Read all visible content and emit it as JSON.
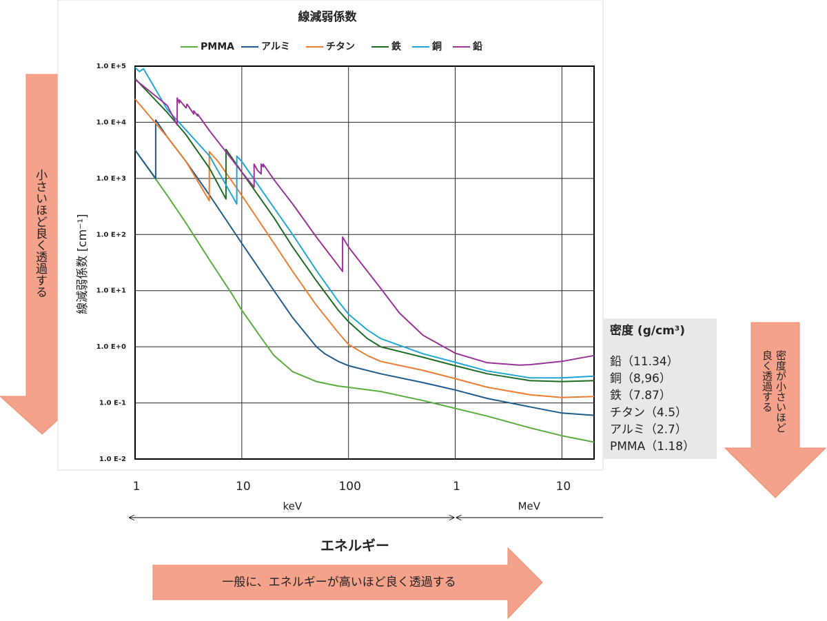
{
  "chart_data": {
    "type": "line",
    "title": "線減弱係数",
    "y_label": "線減弱係数 [cm⁻¹]",
    "x_label": "エネルギー",
    "xscale": "log",
    "yscale": "log",
    "grid": true,
    "legend": "top",
    "xlim": [
      1,
      20000
    ],
    "ylim": [
      0.01,
      100000
    ],
    "xticks": [
      1,
      10,
      100,
      {
        "value": 1000,
        "label": "1"
      },
      {
        "value": 10000,
        "label": "10"
      }
    ],
    "yticks": [
      {
        "value": 0.01,
        "label": "1.0 E-2"
      },
      {
        "value": 0.1,
        "label": "1.0 E-1"
      },
      {
        "value": 1,
        "label": "1.0 E+0"
      },
      {
        "value": 10,
        "label": "1.0 E+1"
      },
      {
        "value": 100,
        "label": "1.0 E+2"
      },
      {
        "value": 1000,
        "label": "1.0 E+3"
      },
      {
        "value": 10000,
        "label": "1.0 E+4"
      },
      {
        "value": 100000,
        "label": "1.0 E+5"
      }
    ],
    "unit_labels": [
      "keV",
      "MeV"
    ],
    "series": [
      {
        "name": "PMMA",
        "color": "#5bac3f",
        "x": [
          1,
          2,
          3,
          5,
          8,
          10,
          15,
          20,
          30,
          50,
          80,
          100,
          200,
          500,
          1000,
          2000,
          5000,
          10000,
          20000
        ],
        "values": [
          3200,
          500,
          160,
          35,
          9,
          4.5,
          1.5,
          0.7,
          0.36,
          0.24,
          0.2,
          0.19,
          0.16,
          0.11,
          0.08,
          0.058,
          0.036,
          0.026,
          0.02
        ]
      },
      {
        "name": "アルミ",
        "color": "#1f5c8c",
        "x": [
          1,
          1.56,
          1.56,
          2,
          3,
          5,
          10,
          20,
          30,
          50,
          60,
          80,
          100,
          200,
          500,
          1000,
          2000,
          5000,
          10000,
          20000
        ],
        "values": [
          3200,
          1000,
          11000,
          5500,
          2000,
          500,
          70,
          10,
          3.3,
          1,
          0.75,
          0.55,
          0.46,
          0.33,
          0.23,
          0.17,
          0.12,
          0.085,
          0.066,
          0.06
        ]
      },
      {
        "name": "チタン",
        "color": "#ed7d31",
        "x": [
          1,
          2,
          3,
          4.96,
          4.96,
          6,
          10,
          20,
          30,
          50,
          80,
          100,
          150,
          200,
          500,
          1000,
          2000,
          5000,
          10000,
          20000
        ],
        "values": [
          26000,
          5500,
          2000,
          400,
          3000,
          2000,
          500,
          70,
          22,
          5.5,
          1.8,
          1.1,
          0.7,
          0.55,
          0.38,
          0.27,
          0.19,
          0.14,
          0.125,
          0.13
        ]
      },
      {
        "name": "鉄",
        "color": "#1e6b24",
        "x": [
          1,
          2,
          3,
          5,
          7.11,
          7.11,
          10,
          20,
          30,
          50,
          80,
          100,
          150,
          200,
          500,
          1000,
          2000,
          5000,
          10000,
          20000
        ],
        "values": [
          60000,
          15000,
          6000,
          1500,
          430,
          3300,
          1300,
          200,
          60,
          15,
          4.5,
          2.8,
          1.4,
          1,
          0.65,
          0.46,
          0.33,
          0.25,
          0.24,
          0.25
        ]
      },
      {
        "name": "銅",
        "color": "#1ea7d6",
        "x": [
          1,
          1.1,
          1.2,
          2,
          5,
          8.98,
          8.98,
          10,
          20,
          30,
          50,
          80,
          100,
          150,
          200,
          500,
          1000,
          2000,
          5000,
          10000,
          20000
        ],
        "values": [
          95000,
          80000,
          90000,
          17000,
          2500,
          350,
          2500,
          2000,
          300,
          100,
          23,
          6.5,
          3.8,
          2,
          1.4,
          0.75,
          0.53,
          0.37,
          0.28,
          0.28,
          0.3
        ]
      },
      {
        "name": "鉛",
        "color": "#993399",
        "x": [
          1,
          2,
          2.48,
          2.48,
          2.6,
          2.6,
          3,
          3.07,
          3.55,
          3.55,
          3.85,
          3.85,
          5,
          10,
          13.04,
          13.04,
          14,
          15.2,
          15.2,
          15.86,
          15.86,
          20,
          30,
          50,
          80,
          88,
          88,
          100,
          200,
          300,
          500,
          1000,
          2000,
          4000,
          5000,
          10000,
          20000
        ],
        "values": [
          58000,
          20000,
          9000,
          27000,
          22000,
          25000,
          18000,
          21000,
          14000,
          16000,
          13000,
          14000,
          7000,
          1300,
          700,
          1800,
          1400,
          1200,
          1800,
          1600,
          1800,
          950,
          350,
          90,
          28,
          22,
          90,
          60,
          11,
          4,
          1.6,
          0.77,
          0.52,
          0.47,
          0.48,
          0.55,
          0.7
        ]
      }
    ]
  },
  "density_box": {
    "title": "密度 (g/cm³)",
    "items": [
      "鉛（11.34）",
      "銅（8,96）",
      "鉄（7.87）",
      "チタン（4.5）",
      "アルミ（2.7）",
      "PMMA（1.18）"
    ]
  },
  "annotations": {
    "left_arrow": "小さいほど良く透過する",
    "right_arrow": "密度が小さいほど良く透過する",
    "bottom_arrow": "一般に、エネルギーが高いほど良く透過する"
  }
}
